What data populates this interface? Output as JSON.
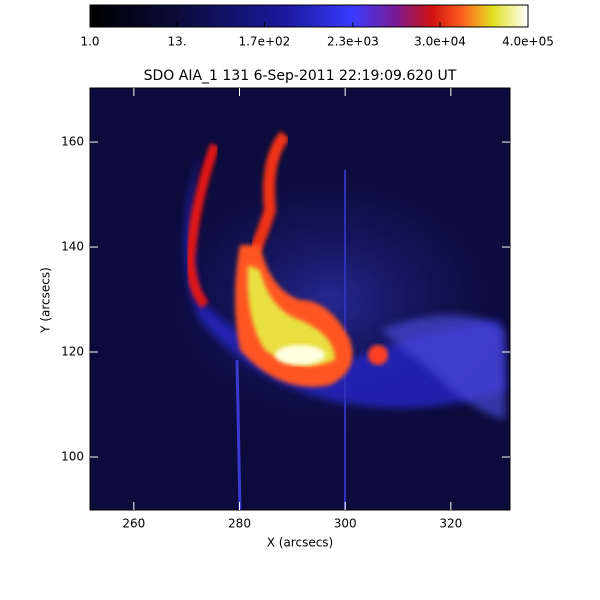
{
  "chart_data": {
    "type": "image",
    "title": "SDO AIA_1 131  6-Sep-2011 22:19:09.620 UT",
    "x_label": "X (arcsecs)",
    "y_label": "Y (arcsecs)",
    "xlim": [
      251.7,
      331.2
    ],
    "xticks": [
      260,
      280,
      300,
      320
    ],
    "ylim": [
      89.9,
      170.3
    ],
    "yticks": [
      100,
      120,
      140,
      160
    ],
    "colorbar": {
      "scale": "log",
      "lim": [
        1,
        400000
      ],
      "ticks": [
        {
          "value": 1,
          "label": "1.0"
        },
        {
          "value": 13,
          "label": "13."
        },
        {
          "value": 170,
          "label": "1.7e+02"
        },
        {
          "value": 2300,
          "label": "2.3e+03"
        },
        {
          "value": 30000,
          "label": "3.0e+04"
        },
        {
          "value": 400000,
          "label": "4.0e+05"
        }
      ]
    }
  }
}
